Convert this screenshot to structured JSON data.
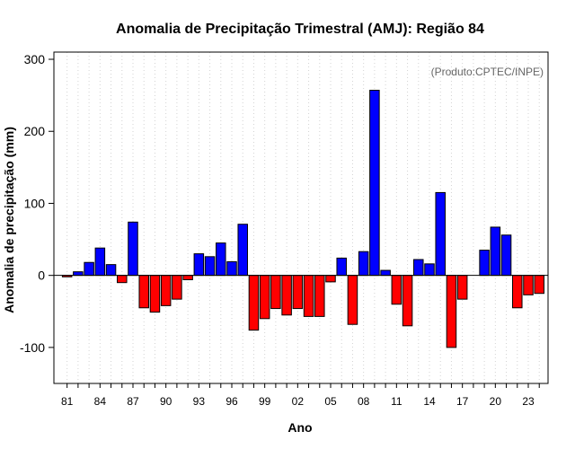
{
  "chart_data": {
    "type": "bar",
    "title": "Anomalia de Precipitação Trimestral (AMJ): Região 84",
    "subtitle": "(Produto:CPTEC/INPE)",
    "xlabel": "Ano",
    "ylabel": "Anomalia de precipitação (mm)",
    "ylim": [
      -150,
      310
    ],
    "yticks": [
      -100,
      0,
      100,
      200,
      300
    ],
    "yticks_text": [
      "-100",
      "0",
      "100",
      "200",
      "300"
    ],
    "xlim": [
      1979.8,
      2024.8
    ],
    "xticks": [
      1981,
      1984,
      1987,
      1990,
      1993,
      1996,
      1999,
      2002,
      2005,
      2008,
      2011,
      2014,
      2017,
      2020,
      2023
    ],
    "xtick_labels": [
      "81",
      "84",
      "87",
      "90",
      "93",
      "96",
      "99",
      "02",
      "05",
      "08",
      "11",
      "14",
      "17",
      "20",
      "23"
    ],
    "grid": "vertical dotted lines at every year",
    "positive_color": "#0000ff",
    "negative_color": "#ff0000",
    "zero_line": true,
    "years": [
      1981,
      1982,
      1983,
      1984,
      1985,
      1986,
      1987,
      1988,
      1989,
      1990,
      1991,
      1992,
      1993,
      1994,
      1995,
      1996,
      1997,
      1998,
      1999,
      2000,
      2001,
      2002,
      2003,
      2004,
      2005,
      2006,
      2007,
      2008,
      2009,
      2010,
      2011,
      2012,
      2013,
      2014,
      2015,
      2016,
      2017,
      2018,
      2019,
      2020,
      2021,
      2022,
      2023,
      2024
    ],
    "values": [
      -2,
      5,
      18,
      38,
      15,
      -10,
      74,
      -45,
      -51,
      -42,
      -33,
      -6,
      30,
      26,
      45,
      19,
      71,
      -76,
      -60,
      -46,
      -55,
      -46,
      -57,
      -57,
      -9,
      24,
      -68,
      33,
      257,
      7,
      -40,
      -70,
      22,
      16,
      115,
      -100,
      -33,
      0,
      35,
      67,
      56,
      -45,
      -27,
      -25
    ]
  }
}
